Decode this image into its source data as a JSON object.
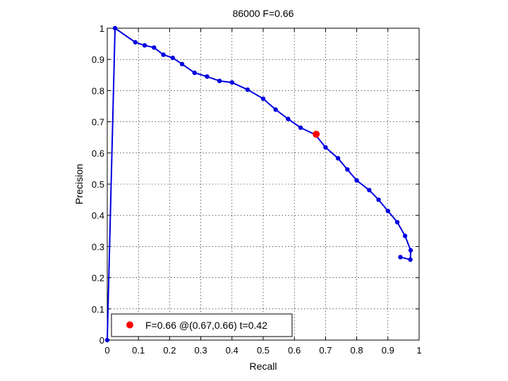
{
  "chart_data": {
    "type": "line",
    "title": "86000 F=0.66",
    "xlabel": "Recall",
    "ylabel": "Precision",
    "xlim": [
      0,
      1
    ],
    "ylim": [
      0,
      1
    ],
    "grid": true,
    "legend_position": "bottom-left",
    "x_ticks": [
      0,
      0.1,
      0.2,
      0.3,
      0.4,
      0.5,
      0.6,
      0.7,
      0.8,
      0.9,
      1
    ],
    "y_ticks": [
      0,
      0.1,
      0.2,
      0.3,
      0.4,
      0.5,
      0.6,
      0.7,
      0.8,
      0.9,
      1
    ],
    "x_tick_labels": [
      "0",
      "0.1",
      "0.2",
      "0.3",
      "0.4",
      "0.5",
      "0.6",
      "0.7",
      "0.8",
      "0.9",
      "1"
    ],
    "y_tick_labels": [
      "0",
      "0.1",
      "0.2",
      "0.3",
      "0.4",
      "0.5",
      "0.6",
      "0.7",
      "0.8",
      "0.9",
      "1"
    ],
    "series": [
      {
        "color": "#0000e0",
        "points": [
          [
            0.0,
            0.0
          ],
          [
            0.025,
            1.0
          ],
          [
            0.09,
            0.955
          ],
          [
            0.12,
            0.945
          ],
          [
            0.15,
            0.938
          ],
          [
            0.18,
            0.915
          ],
          [
            0.21,
            0.905
          ],
          [
            0.24,
            0.885
          ],
          [
            0.28,
            0.857
          ],
          [
            0.32,
            0.845
          ],
          [
            0.36,
            0.831
          ],
          [
            0.4,
            0.826
          ],
          [
            0.45,
            0.803
          ],
          [
            0.5,
            0.774
          ],
          [
            0.54,
            0.739
          ],
          [
            0.58,
            0.709
          ],
          [
            0.62,
            0.681
          ],
          [
            0.667,
            0.659
          ],
          [
            0.7,
            0.618
          ],
          [
            0.74,
            0.583
          ],
          [
            0.77,
            0.547
          ],
          [
            0.8,
            0.512
          ],
          [
            0.84,
            0.481
          ],
          [
            0.87,
            0.45
          ],
          [
            0.9,
            0.414
          ],
          [
            0.93,
            0.378
          ],
          [
            0.955,
            0.334
          ],
          [
            0.973,
            0.288
          ],
          [
            0.972,
            0.258
          ],
          [
            0.94,
            0.266
          ]
        ]
      }
    ],
    "highlight_point": {
      "x": 0.67,
      "y": 0.66,
      "color": "#ff0000",
      "label": "F=0.66 @(0.67,0.66) t=0.42"
    }
  }
}
